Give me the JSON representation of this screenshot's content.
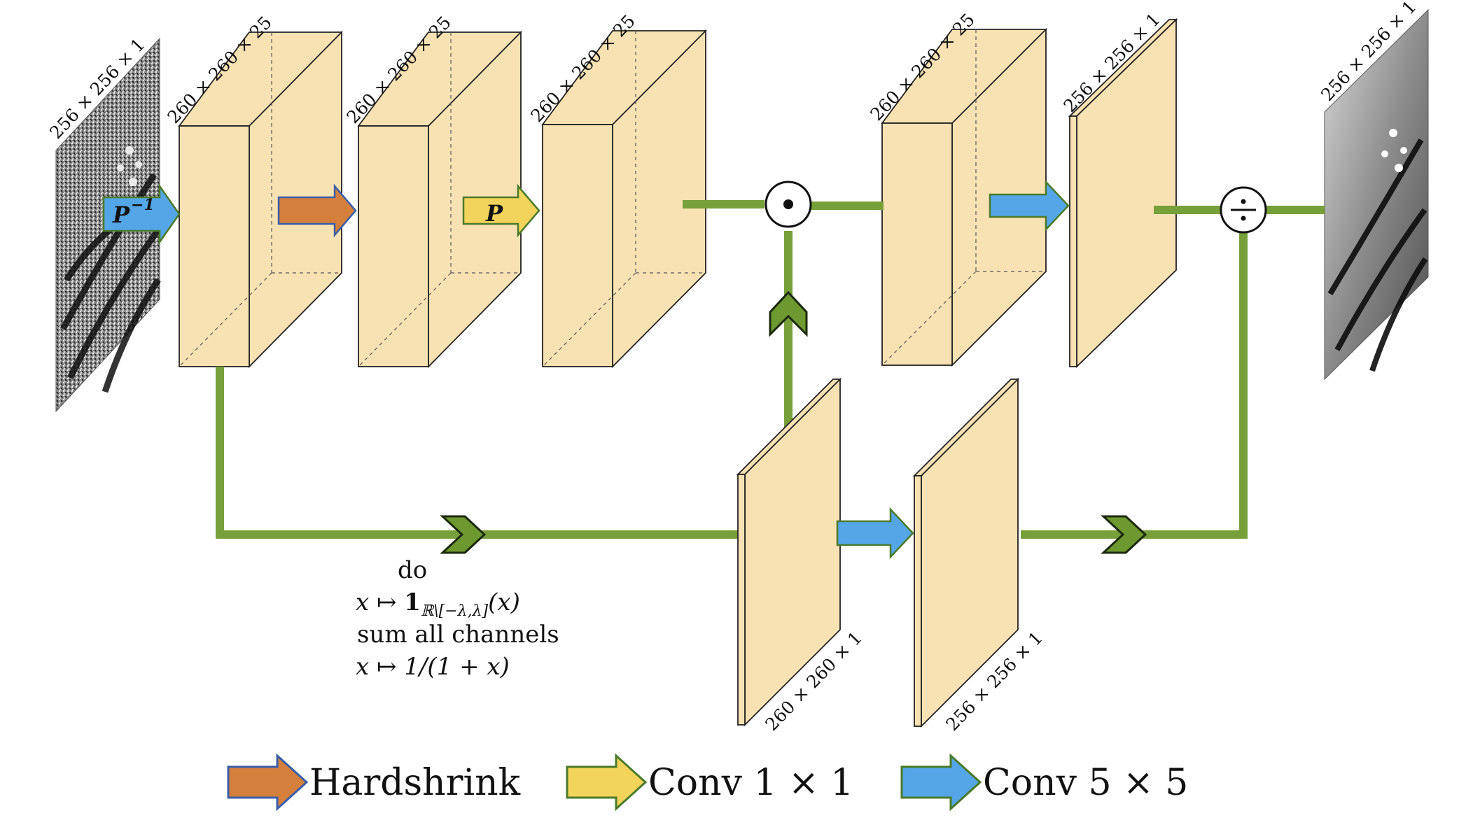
{
  "colors": {
    "block_fill": "#f8e1b2",
    "block_stroke": "#222222",
    "path_green": "#78a03a",
    "chevron_green": "#6e9830",
    "hardshrink_orange": "#d4803c",
    "conv1x1_yellow": "#f2d35b",
    "conv5x5_blue": "#55a6e6",
    "arrow_outline": "#3b5ea8"
  },
  "input_image": {
    "label": "256 × 256 × 1",
    "icon": "noisy-butterfly-image"
  },
  "output_image": {
    "label": "256 × 256 × 1",
    "icon": "clean-butterfly-image"
  },
  "blocks": {
    "block1": "260 × 260 × 25",
    "block2": "260 × 260 × 25",
    "block3": "260 × 260 × 25",
    "block4": "260 × 260 × 25",
    "block5": "256 × 256 × 1",
    "block6": "260 × 260 × 1",
    "block7": "256 × 256 × 1"
  },
  "operators": {
    "inverse_transform": "P",
    "inverse_exponent": "−1",
    "transform": "P",
    "multiply_symbol": "⊙",
    "divide_symbol": "÷"
  },
  "branch_note": {
    "line1": "do",
    "line2_prefix": "x ↦ ",
    "line2_indicator": "1",
    "line2_subscript": "ℝ\\[−λ,λ]",
    "line2_suffix": "(x)",
    "line3": "sum all channels",
    "line4": "x ↦ 1/(1 + x)"
  },
  "legend": {
    "hardshrink": "Hardshrink",
    "conv1x1": "Conv 1 × 1",
    "conv5x5": "Conv 5 × 5"
  }
}
